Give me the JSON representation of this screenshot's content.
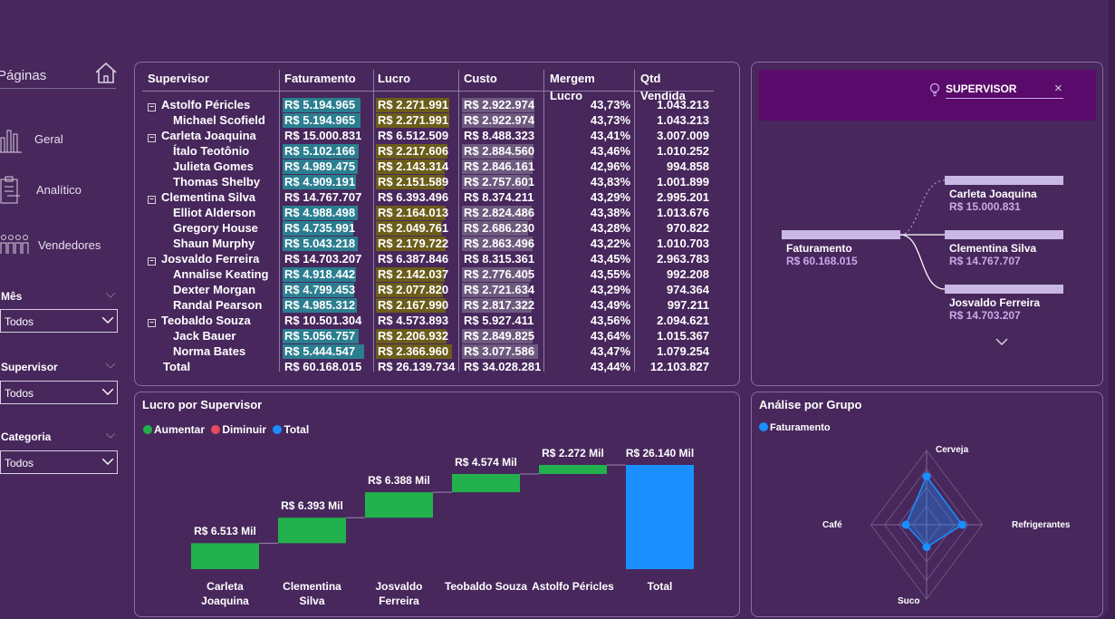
{
  "sidebar": {
    "title": "Páginas",
    "home_icon": "home-icon",
    "nav": [
      {
        "label": "Geral",
        "icon": "bar-chart-icon"
      },
      {
        "label": "Analítico",
        "icon": "clipboard-icon"
      },
      {
        "label": "Vendedores",
        "icon": "people-icon"
      }
    ],
    "filters": [
      {
        "label": "Mês",
        "value": "Todos"
      },
      {
        "label": "Supervisor",
        "value": "Todos"
      },
      {
        "label": "Categoria",
        "value": "Todos"
      }
    ]
  },
  "table": {
    "headers": [
      "Supervisor",
      "Faturamento",
      "Lucro",
      "Custo",
      "Mergem Lucro",
      "Qtd Vendida"
    ],
    "rows": [
      {
        "level": 0,
        "name": "Astolfo Péricles",
        "fat": "R$ 5.194.965",
        "lucro": "R$ 2.271.991",
        "custo": "R$ 2.922.974",
        "margem": "43,73%",
        "qtd": "1.043.213",
        "fatv": 5194965,
        "lucv": 2271991,
        "cusv": 2922974
      },
      {
        "level": 1,
        "name": "Michael Scofield",
        "fat": "R$ 5.194.965",
        "lucro": "R$ 2.271.991",
        "custo": "R$ 2.922.974",
        "margem": "43,73%",
        "qtd": "1.043.213",
        "fatv": 5194965,
        "lucv": 2271991,
        "cusv": 2922974
      },
      {
        "level": 0,
        "name": "Carleta Joaquina",
        "fat": "R$ 15.000.831",
        "lucro": "R$ 6.512.509",
        "custo": "R$ 8.488.323",
        "margem": "43,41%",
        "qtd": "3.007.009"
      },
      {
        "level": 1,
        "name": "Ítalo Teotônio",
        "fat": "R$ 5.102.166",
        "lucro": "R$ 2.217.606",
        "custo": "R$ 2.884.560",
        "margem": "43,46%",
        "qtd": "1.010.252",
        "fatv": 5102166,
        "lucv": 2217606,
        "cusv": 2884560
      },
      {
        "level": 1,
        "name": "Julieta Gomes",
        "fat": "R$ 4.989.475",
        "lucro": "R$ 2.143.314",
        "custo": "R$ 2.846.161",
        "margem": "42,96%",
        "qtd": "994.858",
        "fatv": 4989475,
        "lucv": 2143314,
        "cusv": 2846161
      },
      {
        "level": 1,
        "name": "Thomas Shelby",
        "fat": "R$ 4.909.191",
        "lucro": "R$ 2.151.589",
        "custo": "R$ 2.757.601",
        "margem": "43,83%",
        "qtd": "1.001.899",
        "fatv": 4909191,
        "lucv": 2151589,
        "cusv": 2757601
      },
      {
        "level": 0,
        "name": "Clementina Silva",
        "fat": "R$ 14.767.707",
        "lucro": "R$ 6.393.496",
        "custo": "R$ 8.374.211",
        "margem": "43,29%",
        "qtd": "2.995.201"
      },
      {
        "level": 1,
        "name": "Elliot Alderson",
        "fat": "R$ 4.988.498",
        "lucro": "R$ 2.164.013",
        "custo": "R$ 2.824.486",
        "margem": "43,38%",
        "qtd": "1.013.676",
        "fatv": 4988498,
        "lucv": 2164013,
        "cusv": 2824486
      },
      {
        "level": 1,
        "name": "Gregory House",
        "fat": "R$ 4.735.991",
        "lucro": "R$ 2.049.761",
        "custo": "R$ 2.686.230",
        "margem": "43,28%",
        "qtd": "970.822",
        "fatv": 4735991,
        "lucv": 2049761,
        "cusv": 2686230
      },
      {
        "level": 1,
        "name": "Shaun Murphy",
        "fat": "R$ 5.043.218",
        "lucro": "R$ 2.179.722",
        "custo": "R$ 2.863.496",
        "margem": "43,22%",
        "qtd": "1.010.703",
        "fatv": 5043218,
        "lucv": 2179722,
        "cusv": 2863496
      },
      {
        "level": 0,
        "name": "Josvaldo Ferreira",
        "fat": "R$ 14.703.207",
        "lucro": "R$ 6.387.846",
        "custo": "R$ 8.315.361",
        "margem": "43,45%",
        "qtd": "2.963.783"
      },
      {
        "level": 1,
        "name": "Annalise Keating",
        "fat": "R$ 4.918.442",
        "lucro": "R$ 2.142.037",
        "custo": "R$ 2.776.405",
        "margem": "43,55%",
        "qtd": "992.208",
        "fatv": 4918442,
        "lucv": 2142037,
        "cusv": 2776405
      },
      {
        "level": 1,
        "name": "Dexter Morgan",
        "fat": "R$ 4.799.453",
        "lucro": "R$ 2.077.820",
        "custo": "R$ 2.721.634",
        "margem": "43,29%",
        "qtd": "974.364",
        "fatv": 4799453,
        "lucv": 2077820,
        "cusv": 2721634
      },
      {
        "level": 1,
        "name": "Randal Pearson",
        "fat": "R$ 4.985.312",
        "lucro": "R$ 2.167.990",
        "custo": "R$ 2.817.322",
        "margem": "43,49%",
        "qtd": "997.211",
        "fatv": 4985312,
        "lucv": 2167990,
        "cusv": 2817322
      },
      {
        "level": 0,
        "name": "Teobaldo Souza",
        "fat": "R$ 10.501.304",
        "lucro": "R$ 4.573.893",
        "custo": "R$ 5.927.411",
        "margem": "43,56%",
        "qtd": "2.094.621"
      },
      {
        "level": 1,
        "name": "Jack Bauer",
        "fat": "R$ 5.056.757",
        "lucro": "R$ 2.206.932",
        "custo": "R$ 2.849.825",
        "margem": "43,64%",
        "qtd": "1.015.367",
        "fatv": 5056757,
        "lucv": 2206932,
        "cusv": 2849825
      },
      {
        "level": 1,
        "name": "Norma Bates",
        "fat": "R$ 5.444.547",
        "lucro": "R$ 2.366.960",
        "custo": "R$ 3.077.586",
        "margem": "43,47%",
        "qtd": "1.079.254",
        "fatv": 5444547,
        "lucv": 2366960,
        "cusv": 3077586
      },
      {
        "level": 2,
        "name": "Total",
        "fat": "R$ 60.168.015",
        "lucro": "R$ 26.139.734",
        "custo": "R$ 34.028.281",
        "margem": "43,44%",
        "qtd": "12.103.827"
      }
    ],
    "expand_symbol": "−",
    "colors": {
      "fat": "#2b7e8f",
      "lucro": "#6b5d1a",
      "custo": "#6d5a7e"
    }
  },
  "decomp": {
    "search_icon": "lightbulb-icon",
    "field": "SUPERVISOR",
    "close": "×",
    "root": {
      "label": "Faturamento",
      "value": "R$ 60.168.015"
    },
    "children": [
      {
        "label": "Carleta Joaquina",
        "value": "R$ 15.000.831"
      },
      {
        "label": "Clementina Silva",
        "value": "R$ 14.767.707"
      },
      {
        "label": "Josvaldo Ferreira",
        "value": "R$ 14.703.207"
      }
    ],
    "more_icon": "chevron-down-icon"
  },
  "waterfall": {
    "title": "Lucro por Supervisor",
    "legend": [
      {
        "label": "Aumentar",
        "color": "#22b14c"
      },
      {
        "label": "Diminuir",
        "color": "#e74c5c"
      },
      {
        "label": "Total",
        "color": "#1a8fff"
      }
    ]
  },
  "chart_data": [
    {
      "type": "bar",
      "title": "Lucro por Supervisor",
      "categories": [
        "Carleta Joaquina",
        "Clementina Silva",
        "Josvaldo Ferreira",
        "Teobaldo Souza",
        "Astolfo Péricles",
        "Total"
      ],
      "values": [
        6.513,
        6.393,
        6.388,
        4.574,
        2.272,
        26.14
      ],
      "labels": [
        "R$ 6.513 Mil",
        "R$ 6.393 Mil",
        "R$ 6.388 Mil",
        "R$ 4.574 Mil",
        "R$ 2.272 Mil",
        "R$ 26.140 Mil"
      ],
      "cat_lines": [
        [
          "Carleta",
          "Joaquina"
        ],
        [
          "Clementina",
          "Silva"
        ],
        [
          "Josvaldo",
          "Ferreira"
        ],
        [
          "Teobaldo Souza"
        ],
        [
          "Astolfo Péricles"
        ],
        [
          "Total"
        ]
      ],
      "colors": {
        "increase": "#22b14c",
        "total": "#1a8fff"
      }
    },
    {
      "type": "radar",
      "title": "Análise por Grupo",
      "series": [
        {
          "name": "Faturamento",
          "color": "#1a8fff"
        }
      ],
      "axes": [
        "Cerveja",
        "Refrigerantes",
        "Suco",
        "Café"
      ],
      "values": [
        0.65,
        0.48,
        0.3,
        0.28
      ]
    }
  ],
  "radar_title": "Análise por Grupo"
}
